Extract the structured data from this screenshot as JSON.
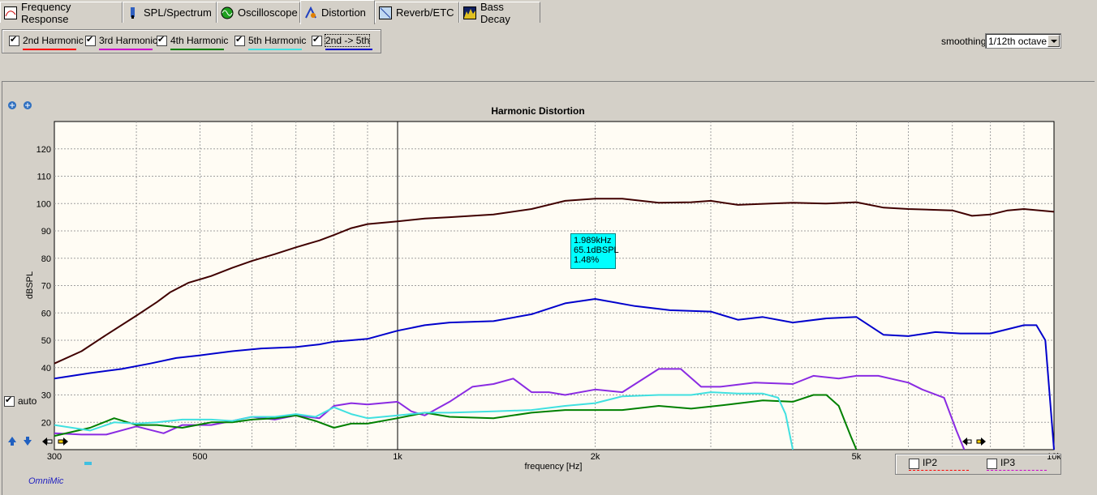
{
  "tabs": [
    {
      "label": "Frequency Response",
      "icon": "frequency-response-icon"
    },
    {
      "label": "SPL/Spectrum",
      "icon": "spl-meter-icon"
    },
    {
      "label": "Oscilloscope",
      "icon": "oscilloscope-icon"
    },
    {
      "label": "Distortion",
      "icon": "distortion-icon",
      "active": true
    },
    {
      "label": "Reverb/ETC",
      "icon": "reverb-icon"
    },
    {
      "label": "Bass Decay",
      "icon": "bass-decay-icon"
    }
  ],
  "options": [
    {
      "label": "2nd Harmonic",
      "checked": true,
      "color": "#ff0000"
    },
    {
      "label": "3rd Harmonic",
      "checked": true,
      "color": "#cc00cc"
    },
    {
      "label": "4th Harmonic",
      "checked": true,
      "color": "#008000"
    },
    {
      "label": "5th Harmonic",
      "checked": true,
      "color": "#40e0e0"
    },
    {
      "label": "2nd -> 5th",
      "checked": true,
      "color": "#0000cc"
    }
  ],
  "smoothing": {
    "label": "smoothing",
    "value": "1/12th octave"
  },
  "auto": {
    "label": "auto",
    "checked": true
  },
  "tooltip": {
    "freq": "1.989kHz",
    "level": "65.1dBSPL",
    "pct": "1.48%"
  },
  "ip": [
    {
      "label": "IP2",
      "color": "#ff0000",
      "checked": false
    },
    {
      "label": "IP3",
      "color": "#cc00cc",
      "checked": false
    }
  ],
  "brand": "OmniMic",
  "chart_data": {
    "type": "line",
    "title": "Harmonic Distortion",
    "xlabel": "frequency [Hz]",
    "ylabel": "dBSPL",
    "xscale": "log",
    "xlim": [
      300,
      10000
    ],
    "ylim": [
      10,
      130
    ],
    "xticks": [
      {
        "v": 300,
        "label": "300"
      },
      {
        "v": 500,
        "label": "500"
      },
      {
        "v": 1000,
        "label": "1k"
      },
      {
        "v": 2000,
        "label": "2k"
      },
      {
        "v": 5000,
        "label": "5k"
      },
      {
        "v": 10000,
        "label": "10k"
      }
    ],
    "yticks": [
      20,
      30,
      40,
      50,
      60,
      70,
      80,
      90,
      100,
      110,
      120
    ],
    "grid": true,
    "series": [
      {
        "color": "#400000",
        "points": [
          [
            300,
            41.5
          ],
          [
            330,
            46
          ],
          [
            360,
            52
          ],
          [
            400,
            59
          ],
          [
            430,
            64
          ],
          [
            450,
            67.5
          ],
          [
            480,
            71
          ],
          [
            520,
            73.5
          ],
          [
            560,
            76.5
          ],
          [
            600,
            79
          ],
          [
            650,
            81.5
          ],
          [
            700,
            84
          ],
          [
            760,
            86.5
          ],
          [
            800,
            88.5
          ],
          [
            850,
            91
          ],
          [
            900,
            92.5
          ],
          [
            1000,
            93.5
          ],
          [
            1100,
            94.5
          ],
          [
            1200,
            95
          ],
          [
            1400,
            96
          ],
          [
            1600,
            98
          ],
          [
            1800,
            101
          ],
          [
            2000,
            101.8
          ],
          [
            2200,
            101.8
          ],
          [
            2500,
            100.3
          ],
          [
            2800,
            100.5
          ],
          [
            3000,
            101
          ],
          [
            3300,
            99.5
          ],
          [
            3700,
            100
          ],
          [
            4000,
            100.3
          ],
          [
            4500,
            100
          ],
          [
            5000,
            100.5
          ],
          [
            5500,
            98.5
          ],
          [
            6000,
            98
          ],
          [
            7000,
            97.5
          ],
          [
            7500,
            95.5
          ],
          [
            8000,
            96
          ],
          [
            8500,
            97.5
          ],
          [
            9000,
            98
          ],
          [
            10000,
            97
          ]
        ]
      },
      {
        "color": "#0000cc",
        "points": [
          [
            300,
            36
          ],
          [
            340,
            38
          ],
          [
            380,
            39.5
          ],
          [
            420,
            41.5
          ],
          [
            460,
            43.5
          ],
          [
            500,
            44.5
          ],
          [
            560,
            46
          ],
          [
            620,
            47
          ],
          [
            700,
            47.5
          ],
          [
            760,
            48.5
          ],
          [
            800,
            49.5
          ],
          [
            850,
            50
          ],
          [
            900,
            50.5
          ],
          [
            1000,
            53.5
          ],
          [
            1100,
            55.5
          ],
          [
            1200,
            56.5
          ],
          [
            1400,
            57
          ],
          [
            1600,
            59.5
          ],
          [
            1800,
            63.5
          ],
          [
            2000,
            65.1
          ],
          [
            2300,
            62.5
          ],
          [
            2600,
            61
          ],
          [
            3000,
            60.5
          ],
          [
            3300,
            57.5
          ],
          [
            3600,
            58.5
          ],
          [
            4000,
            56.5
          ],
          [
            4500,
            58
          ],
          [
            5000,
            58.5
          ],
          [
            5500,
            52
          ],
          [
            6000,
            51.5
          ],
          [
            6600,
            53
          ],
          [
            7200,
            52.5
          ],
          [
            8000,
            52.5
          ],
          [
            9000,
            55.5
          ],
          [
            9400,
            55.5
          ],
          [
            9700,
            50
          ],
          [
            10000,
            10
          ]
        ]
      },
      {
        "color": "#8a2be2",
        "points": [
          [
            300,
            16
          ],
          [
            330,
            15.5
          ],
          [
            360,
            15.5
          ],
          [
            400,
            18.5
          ],
          [
            440,
            16
          ],
          [
            470,
            19
          ],
          [
            520,
            19
          ],
          [
            560,
            20.5
          ],
          [
            600,
            22
          ],
          [
            650,
            21
          ],
          [
            700,
            22.5
          ],
          [
            730,
            22
          ],
          [
            760,
            21.5
          ],
          [
            800,
            26
          ],
          [
            850,
            27
          ],
          [
            900,
            26.5
          ],
          [
            1000,
            27.5
          ],
          [
            1050,
            24
          ],
          [
            1100,
            22.5
          ],
          [
            1200,
            27.5
          ],
          [
            1300,
            33
          ],
          [
            1400,
            34
          ],
          [
            1500,
            36
          ],
          [
            1600,
            31
          ],
          [
            1700,
            31
          ],
          [
            1800,
            30
          ],
          [
            2000,
            32
          ],
          [
            2200,
            31
          ],
          [
            2500,
            39.5
          ],
          [
            2700,
            39.5
          ],
          [
            2900,
            33
          ],
          [
            3100,
            33
          ],
          [
            3500,
            34.5
          ],
          [
            4000,
            34
          ],
          [
            4300,
            37
          ],
          [
            4700,
            36
          ],
          [
            5000,
            37
          ],
          [
            5400,
            37
          ],
          [
            6000,
            34.5
          ],
          [
            6300,
            32
          ],
          [
            6800,
            29
          ],
          [
            7100,
            17
          ],
          [
            7300,
            10
          ]
        ]
      },
      {
        "color": "#008000",
        "points": [
          [
            300,
            15
          ],
          [
            340,
            18
          ],
          [
            370,
            21.5
          ],
          [
            400,
            19
          ],
          [
            430,
            19
          ],
          [
            470,
            18
          ],
          [
            520,
            20
          ],
          [
            560,
            20
          ],
          [
            600,
            21
          ],
          [
            650,
            21.5
          ],
          [
            700,
            22.5
          ],
          [
            750,
            20.5
          ],
          [
            800,
            18
          ],
          [
            850,
            19.5
          ],
          [
            900,
            19.5
          ],
          [
            1000,
            21.5
          ],
          [
            1100,
            23.5
          ],
          [
            1200,
            22
          ],
          [
            1400,
            21.5
          ],
          [
            1600,
            23.5
          ],
          [
            1800,
            24.5
          ],
          [
            2200,
            24.5
          ],
          [
            2500,
            26
          ],
          [
            2800,
            25
          ],
          [
            3200,
            26.5
          ],
          [
            3600,
            28
          ],
          [
            4000,
            27.5
          ],
          [
            4300,
            30
          ],
          [
            4500,
            30
          ],
          [
            4700,
            26
          ],
          [
            4900,
            15
          ],
          [
            5000,
            10
          ]
        ]
      },
      {
        "color": "#40e0e0",
        "points": [
          [
            300,
            19
          ],
          [
            340,
            17
          ],
          [
            370,
            20
          ],
          [
            400,
            19.5
          ],
          [
            430,
            20
          ],
          [
            470,
            21
          ],
          [
            520,
            21
          ],
          [
            560,
            20.5
          ],
          [
            600,
            22
          ],
          [
            650,
            22
          ],
          [
            700,
            23
          ],
          [
            750,
            22
          ],
          [
            800,
            25.5
          ],
          [
            850,
            23
          ],
          [
            900,
            21.5
          ],
          [
            1000,
            22.5
          ],
          [
            1100,
            23.5
          ],
          [
            1200,
            23.5
          ],
          [
            1400,
            24
          ],
          [
            1600,
            24.5
          ],
          [
            1800,
            26
          ],
          [
            2000,
            27
          ],
          [
            2200,
            29.5
          ],
          [
            2500,
            30
          ],
          [
            2800,
            30
          ],
          [
            3000,
            31
          ],
          [
            3300,
            30.5
          ],
          [
            3600,
            30.5
          ],
          [
            3800,
            29
          ],
          [
            3900,
            23
          ],
          [
            4000,
            10
          ]
        ]
      }
    ]
  }
}
